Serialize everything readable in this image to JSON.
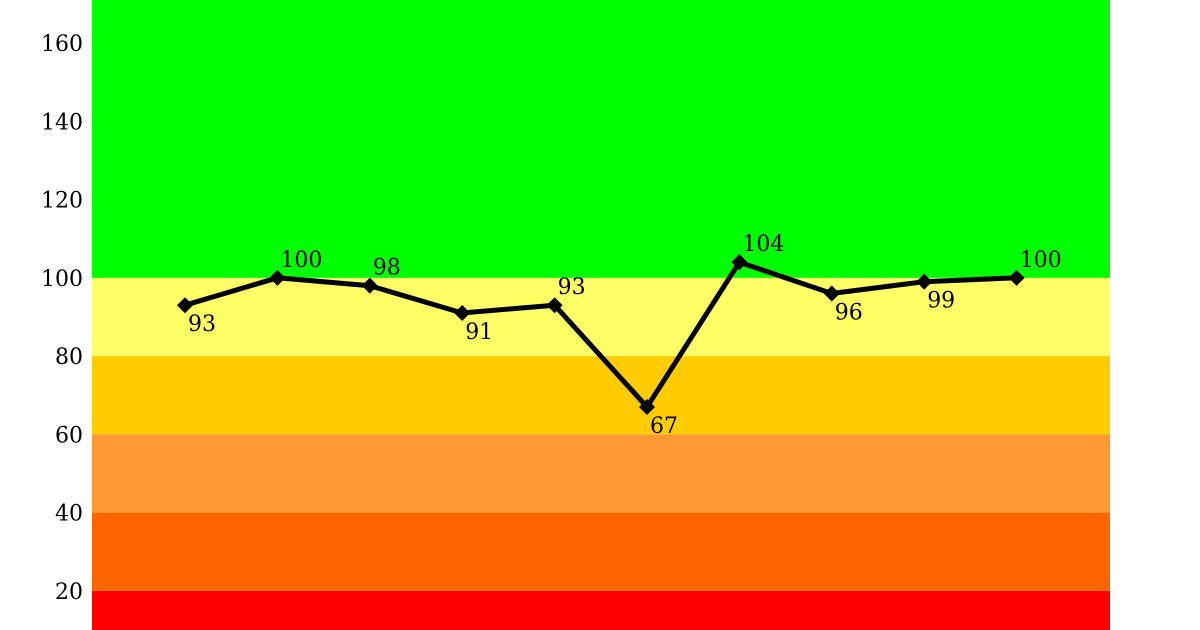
{
  "chart_data": {
    "type": "line",
    "title": "",
    "xlabel": "",
    "ylabel": "",
    "ylim": [
      10,
      171
    ],
    "yticks": [
      20,
      40,
      60,
      80,
      100,
      120,
      140,
      160
    ],
    "grid": false,
    "legend": "none",
    "bands": [
      {
        "from": 10,
        "to": 20,
        "color": "#ff0000"
      },
      {
        "from": 20,
        "to": 40,
        "color": "#ff6600"
      },
      {
        "from": 40,
        "to": 60,
        "color": "#ff9933"
      },
      {
        "from": 60,
        "to": 80,
        "color": "#ffcc00"
      },
      {
        "from": 80,
        "to": 100,
        "color": "#ffff66"
      },
      {
        "from": 100,
        "to": 171,
        "color": "#00ff00"
      }
    ],
    "series": [
      {
        "color": "#000000",
        "x": [
          1,
          2,
          3,
          4,
          5,
          6,
          7,
          8,
          9,
          10
        ],
        "values": [
          93,
          100,
          98,
          91,
          93,
          67,
          104,
          96,
          99,
          100
        ],
        "labels": [
          "93",
          "100",
          "98",
          "91",
          "93",
          "67",
          "104",
          "96",
          "99",
          "100"
        ],
        "label_positions": [
          "below",
          "above",
          "above",
          "below",
          "above",
          "below",
          "above",
          "below",
          "below",
          "above"
        ]
      }
    ]
  }
}
